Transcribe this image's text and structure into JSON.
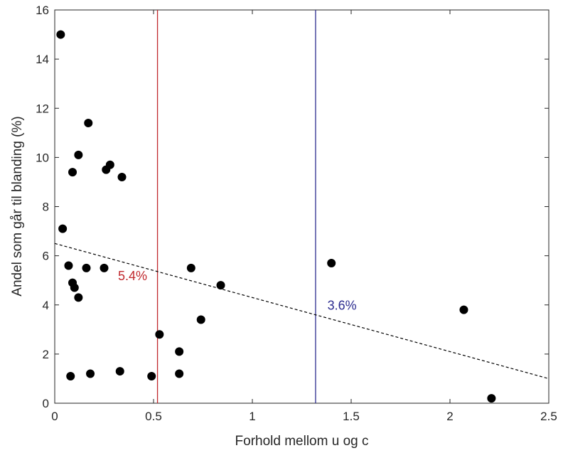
{
  "chart_data": {
    "type": "scatter",
    "title": "",
    "xlabel": "Forhold mellom u og c",
    "ylabel": "Andel som går til blanding (%)",
    "xlim": [
      0,
      2.5
    ],
    "ylim": [
      0,
      16
    ],
    "xticks": [
      0,
      0.5,
      1,
      1.5,
      2,
      2.5
    ],
    "xtick_labels": [
      "0",
      "0.5",
      "1",
      "1.5",
      "2",
      "2.5"
    ],
    "yticks": [
      0,
      2,
      4,
      6,
      8,
      10,
      12,
      14,
      16
    ],
    "ytick_labels": [
      "0",
      "2",
      "4",
      "6",
      "8",
      "10",
      "12",
      "14",
      "16"
    ],
    "grid": false,
    "point_color": "#000000",
    "points": [
      {
        "x": 0.03,
        "y": 15.0
      },
      {
        "x": 0.04,
        "y": 7.1
      },
      {
        "x": 0.07,
        "y": 5.6
      },
      {
        "x": 0.08,
        "y": 1.1
      },
      {
        "x": 0.09,
        "y": 4.9
      },
      {
        "x": 0.09,
        "y": 9.4
      },
      {
        "x": 0.1,
        "y": 4.7
      },
      {
        "x": 0.12,
        "y": 4.3
      },
      {
        "x": 0.12,
        "y": 10.1
      },
      {
        "x": 0.16,
        "y": 5.5
      },
      {
        "x": 0.17,
        "y": 11.4
      },
      {
        "x": 0.18,
        "y": 1.2
      },
      {
        "x": 0.25,
        "y": 5.5
      },
      {
        "x": 0.26,
        "y": 9.5
      },
      {
        "x": 0.28,
        "y": 9.7
      },
      {
        "x": 0.33,
        "y": 1.3
      },
      {
        "x": 0.34,
        "y": 9.2
      },
      {
        "x": 0.49,
        "y": 1.1
      },
      {
        "x": 0.53,
        "y": 2.8
      },
      {
        "x": 0.63,
        "y": 2.1
      },
      {
        "x": 0.63,
        "y": 1.2
      },
      {
        "x": 0.69,
        "y": 5.5
      },
      {
        "x": 0.74,
        "y": 3.4
      },
      {
        "x": 0.84,
        "y": 4.8
      },
      {
        "x": 1.4,
        "y": 5.7
      },
      {
        "x": 2.07,
        "y": 3.8
      },
      {
        "x": 2.21,
        "y": 0.2
      }
    ],
    "trend_line": {
      "x": [
        0,
        2.5
      ],
      "y": [
        6.5,
        1.0
      ],
      "style": "dashed",
      "color": "#000000"
    },
    "vertical_lines": [
      {
        "x": 0.52,
        "color": "#c0282d",
        "label": "5.4%",
        "label_x": 0.32,
        "label_y": 5.0
      },
      {
        "x": 1.32,
        "color": "#2b2b8f",
        "label": "3.6%",
        "label_x": 1.38,
        "label_y": 3.8
      }
    ]
  }
}
